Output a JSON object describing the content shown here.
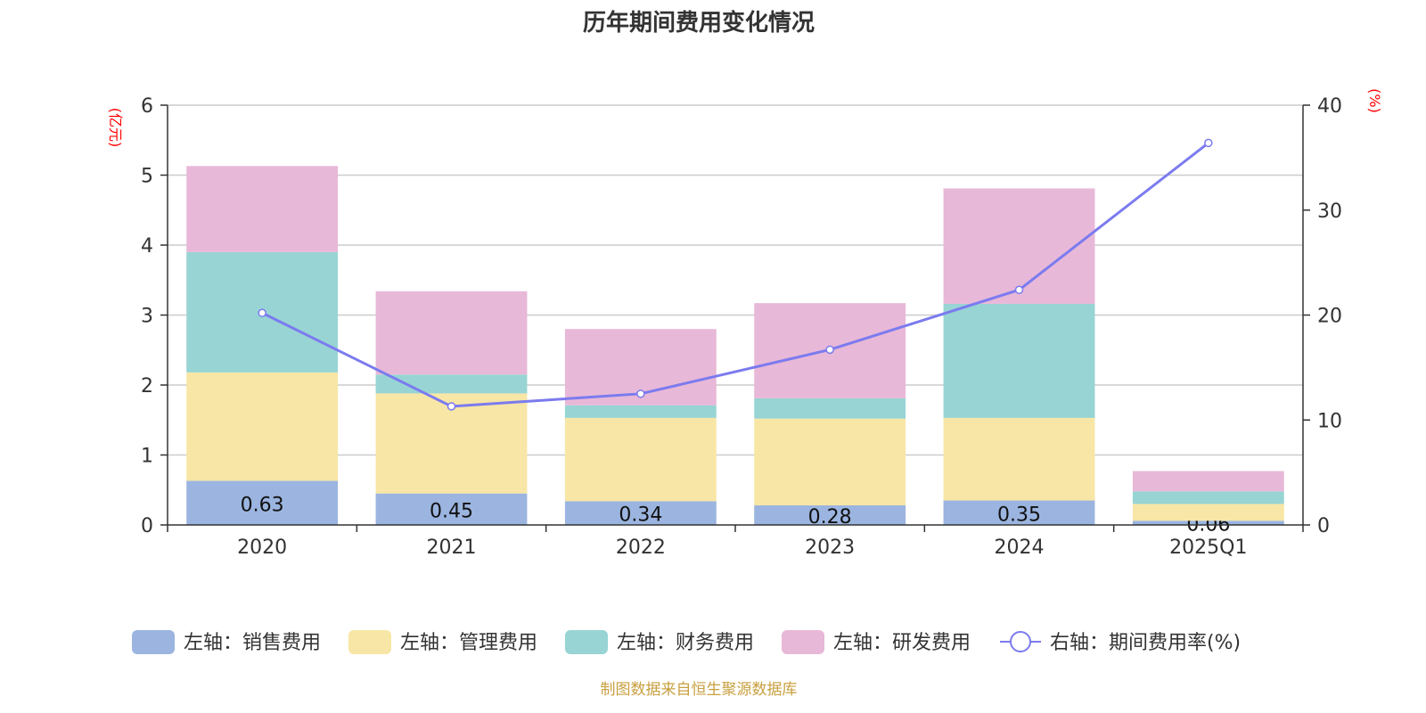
{
  "chart_data": {
    "type": "bar",
    "title": "历年期间费用变化情况",
    "categories": [
      "2020",
      "2021",
      "2022",
      "2023",
      "2024",
      "2025Q1"
    ],
    "left_axis": {
      "unit": "(亿元)",
      "ylim": [
        0,
        6
      ],
      "ticks": [
        "0",
        "1",
        "2",
        "3",
        "4",
        "5",
        "6"
      ]
    },
    "right_axis": {
      "unit": "(%)",
      "ylim": [
        0,
        40
      ],
      "ticks": [
        "0",
        "10",
        "20",
        "30",
        "40"
      ]
    },
    "series": [
      {
        "name": "左轴：销售费用",
        "axis": "left",
        "type": "bar",
        "color": "#9bb5e0",
        "values": [
          0.63,
          0.45,
          0.34,
          0.28,
          0.35,
          0.06
        ],
        "labels": [
          "0.63",
          "0.45",
          "0.34",
          "0.28",
          "0.35",
          "0.06"
        ]
      },
      {
        "name": "左轴：管理费用",
        "axis": "left",
        "type": "bar",
        "color": "#f8e6a6",
        "values": [
          1.55,
          1.43,
          1.19,
          1.24,
          1.18,
          0.24
        ]
      },
      {
        "name": "左轴：财务费用",
        "axis": "left",
        "type": "bar",
        "color": "#98d4d4",
        "values": [
          1.72,
          0.27,
          0.18,
          0.29,
          1.63,
          0.18
        ]
      },
      {
        "name": "左轴：研发费用",
        "axis": "left",
        "type": "bar",
        "color": "#e8b8d8",
        "values": [
          1.23,
          1.19,
          1.09,
          1.36,
          1.65,
          0.29
        ]
      },
      {
        "name": "右轴：期间费用率(%)",
        "axis": "right",
        "type": "line",
        "color": "#7b7bef",
        "values": [
          20.2,
          11.3,
          12.5,
          16.7,
          22.4,
          36.4
        ]
      }
    ],
    "grid": true,
    "legend": "bottom"
  },
  "source_note": "制图数据来自恒生聚源数据库"
}
